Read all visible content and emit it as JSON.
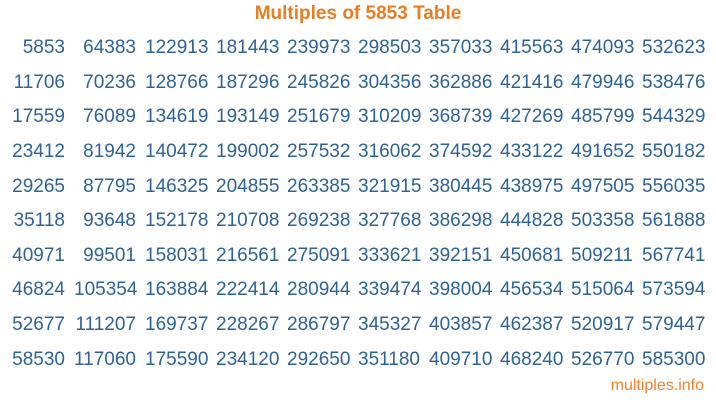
{
  "title": "Multiples of 5853 Table",
  "colors": {
    "accent_orange": "#E87E23",
    "footer_orange": "#F0822D",
    "number_blue": "#2D6396",
    "background": "#FFFFFF"
  },
  "table": {
    "rows": [
      [
        "5853",
        "64383",
        "122913",
        "181443",
        "239973",
        "298503",
        "357033",
        "415563",
        "474093",
        "532623"
      ],
      [
        "11706",
        "70236",
        "128766",
        "187296",
        "245826",
        "304356",
        "362886",
        "421416",
        "479946",
        "538476"
      ],
      [
        "17559",
        "76089",
        "134619",
        "193149",
        "251679",
        "310209",
        "368739",
        "427269",
        "485799",
        "544329"
      ],
      [
        "23412",
        "81942",
        "140472",
        "199002",
        "257532",
        "316062",
        "374592",
        "433122",
        "491652",
        "550182"
      ],
      [
        "29265",
        "87795",
        "146325",
        "204855",
        "263385",
        "321915",
        "380445",
        "438975",
        "497505",
        "556035"
      ],
      [
        "35118",
        "93648",
        "152178",
        "210708",
        "269238",
        "327768",
        "386298",
        "444828",
        "503358",
        "561888"
      ],
      [
        "40971",
        "99501",
        "158031",
        "216561",
        "275091",
        "333621",
        "392151",
        "450681",
        "509211",
        "567741"
      ],
      [
        "46824",
        "105354",
        "163884",
        "222414",
        "280944",
        "339474",
        "398004",
        "456534",
        "515064",
        "573594"
      ],
      [
        "52677",
        "111207",
        "169737",
        "228267",
        "286797",
        "345327",
        "403857",
        "462387",
        "520917",
        "579447"
      ],
      [
        "58530",
        "117060",
        "175590",
        "234120",
        "292650",
        "351180",
        "409710",
        "468240",
        "526770",
        "585300"
      ]
    ]
  },
  "footer": {
    "site_label": "multiples.info"
  }
}
